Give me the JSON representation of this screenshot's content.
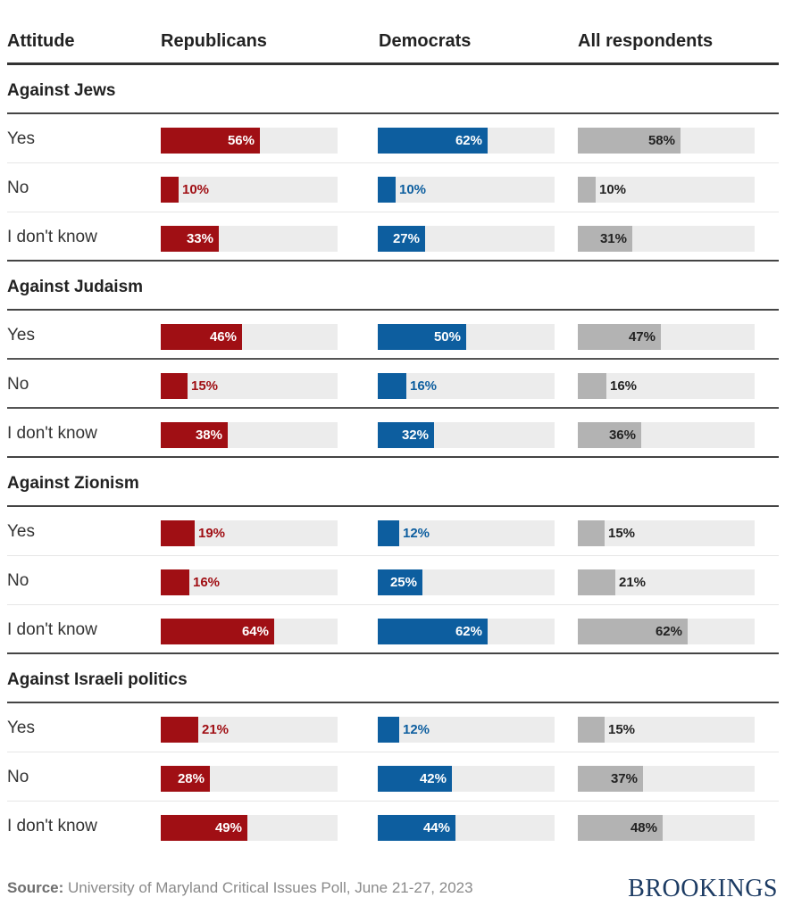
{
  "chart_data": {
    "type": "bar",
    "title": "",
    "columns": [
      "Attitude",
      "Republicans",
      "Democrats",
      "All respondents"
    ],
    "series_colors": {
      "Republicans": "#a00f14",
      "Democrats": "#0d5e9f",
      "All respondents": "#b3b3b3"
    },
    "track_color": "#ececec",
    "value_scale": [
      0,
      100
    ],
    "groups": [
      {
        "title": "Against Jews",
        "rows": [
          {
            "label": "Yes",
            "values": [
              56,
              62,
              58
            ]
          },
          {
            "label": "No",
            "values": [
              10,
              10,
              10
            ]
          },
          {
            "label": "I don't know",
            "values": [
              33,
              27,
              31
            ]
          }
        ]
      },
      {
        "title": "Against Judaism",
        "rows": [
          {
            "label": "Yes",
            "values": [
              46,
              50,
              47
            ]
          },
          {
            "label": "No",
            "values": [
              15,
              16,
              16
            ]
          },
          {
            "label": "I don't know",
            "values": [
              38,
              32,
              36
            ]
          }
        ]
      },
      {
        "title": "Against Zionism",
        "rows": [
          {
            "label": "Yes",
            "values": [
              19,
              12,
              15
            ]
          },
          {
            "label": "No",
            "values": [
              16,
              25,
              21
            ]
          },
          {
            "label": "I don't know",
            "values": [
              64,
              62,
              62
            ]
          }
        ]
      },
      {
        "title": "Against Israeli politics",
        "rows": [
          {
            "label": "Yes",
            "values": [
              21,
              12,
              15
            ]
          },
          {
            "label": "No",
            "values": [
              28,
              42,
              37
            ]
          },
          {
            "label": "I don't know",
            "values": [
              49,
              44,
              48
            ]
          }
        ]
      }
    ]
  },
  "header": {
    "attitude": "Attitude",
    "republicans": "Republicans",
    "democrats": "Democrats",
    "all": "All respondents"
  },
  "footer": {
    "source_label": "Source:",
    "source_text": " University of Maryland Critical Issues Poll, June 21-27, 2023",
    "brand": "BROOKINGS"
  }
}
